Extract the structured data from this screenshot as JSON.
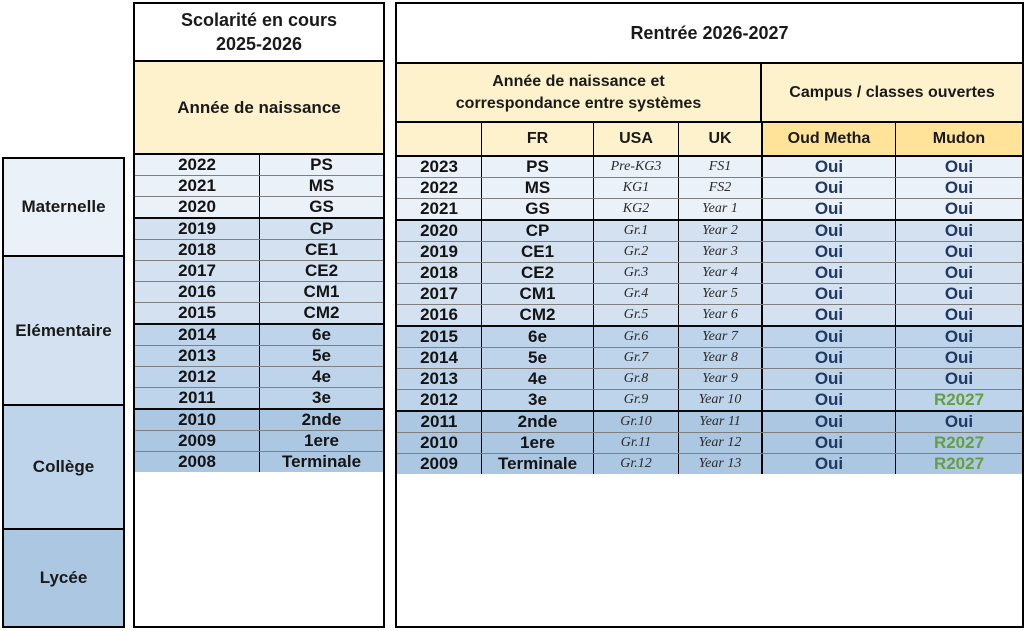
{
  "category_column": {
    "sections": [
      {
        "label": "Maternelle",
        "rows": 3
      },
      {
        "label": "Elémentaire",
        "rows": 5
      },
      {
        "label": "Collège",
        "rows": 4
      },
      {
        "label": "Lycée",
        "rows": 3
      }
    ]
  },
  "current_table": {
    "title_line1": "Scolarité en cours",
    "title_line2": "2025-2026",
    "header": "Année de naissance",
    "rows": [
      {
        "year": "2022",
        "level": "PS"
      },
      {
        "year": "2021",
        "level": "MS"
      },
      {
        "year": "2020",
        "level": "GS"
      },
      {
        "year": "2019",
        "level": "CP"
      },
      {
        "year": "2018",
        "level": "CE1"
      },
      {
        "year": "2017",
        "level": "CE2"
      },
      {
        "year": "2016",
        "level": "CM1"
      },
      {
        "year": "2015",
        "level": "CM2"
      },
      {
        "year": "2014",
        "level": "6e"
      },
      {
        "year": "2013",
        "level": "5e"
      },
      {
        "year": "2012",
        "level": "4e"
      },
      {
        "year": "2011",
        "level": "3e"
      },
      {
        "year": "2010",
        "level": "2nde"
      },
      {
        "year": "2009",
        "level": "1ere"
      },
      {
        "year": "2008",
        "level": "Terminale"
      }
    ]
  },
  "next_table": {
    "title": "Rentrée 2026-2027",
    "group_header_correspondence_line1": "Année de naissance et",
    "group_header_correspondence_line2": "correspondance entre systèmes",
    "group_header_campus": "Campus / classes ouvertes",
    "columns": {
      "fr": "FR",
      "usa": "USA",
      "uk": "UK",
      "oud_metha": "Oud Metha",
      "mudon": "Mudon"
    },
    "rows": [
      {
        "year": "2023",
        "fr": "PS",
        "usa": "Pre-KG3",
        "uk": "FS1",
        "oud_metha": "Oui",
        "mudon": "Oui"
      },
      {
        "year": "2022",
        "fr": "MS",
        "usa": "KG1",
        "uk": "FS2",
        "oud_metha": "Oui",
        "mudon": "Oui"
      },
      {
        "year": "2021",
        "fr": "GS",
        "usa": "KG2",
        "uk": "Year 1",
        "oud_metha": "Oui",
        "mudon": "Oui"
      },
      {
        "year": "2020",
        "fr": "CP",
        "usa": "Gr.1",
        "uk": "Year 2",
        "oud_metha": "Oui",
        "mudon": "Oui"
      },
      {
        "year": "2019",
        "fr": "CE1",
        "usa": "Gr.2",
        "uk": "Year 3",
        "oud_metha": "Oui",
        "mudon": "Oui"
      },
      {
        "year": "2018",
        "fr": "CE2",
        "usa": "Gr.3",
        "uk": "Year 4",
        "oud_metha": "Oui",
        "mudon": "Oui"
      },
      {
        "year": "2017",
        "fr": "CM1",
        "usa": "Gr.4",
        "uk": "Year 5",
        "oud_metha": "Oui",
        "mudon": "Oui"
      },
      {
        "year": "2016",
        "fr": "CM2",
        "usa": "Gr.5",
        "uk": "Year 6",
        "oud_metha": "Oui",
        "mudon": "Oui"
      },
      {
        "year": "2015",
        "fr": "6e",
        "usa": "Gr.6",
        "uk": "Year 7",
        "oud_metha": "Oui",
        "mudon": "Oui"
      },
      {
        "year": "2014",
        "fr": "5e",
        "usa": "Gr.7",
        "uk": "Year 8",
        "oud_metha": "Oui",
        "mudon": "Oui"
      },
      {
        "year": "2013",
        "fr": "4e",
        "usa": "Gr.8",
        "uk": "Year 9",
        "oud_metha": "Oui",
        "mudon": "Oui"
      },
      {
        "year": "2012",
        "fr": "3e",
        "usa": "Gr.9",
        "uk": "Year 10",
        "oud_metha": "Oui",
        "mudon": "R2027"
      },
      {
        "year": "2011",
        "fr": "2nde",
        "usa": "Gr.10",
        "uk": "Year 11",
        "oud_metha": "Oui",
        "mudon": "Oui"
      },
      {
        "year": "2010",
        "fr": "1ere",
        "usa": "Gr.11",
        "uk": "Year 12",
        "oud_metha": "Oui",
        "mudon": "R2027"
      },
      {
        "year": "2009",
        "fr": "Terminale",
        "usa": "Gr.12",
        "uk": "Year 13",
        "oud_metha": "Oui",
        "mudon": "R2027"
      }
    ]
  },
  "colors": {
    "maternelle_bg": "#EBF1F8",
    "elementaire_bg": "#D3E1F0",
    "college_bg": "#BED4EA",
    "lycee_bg": "#ABC7E2",
    "header_light_yellow": "#FDF2CC",
    "header_gold": "#FFE399",
    "oui_text": "#1F3864",
    "r2027_text": "#669E41"
  }
}
